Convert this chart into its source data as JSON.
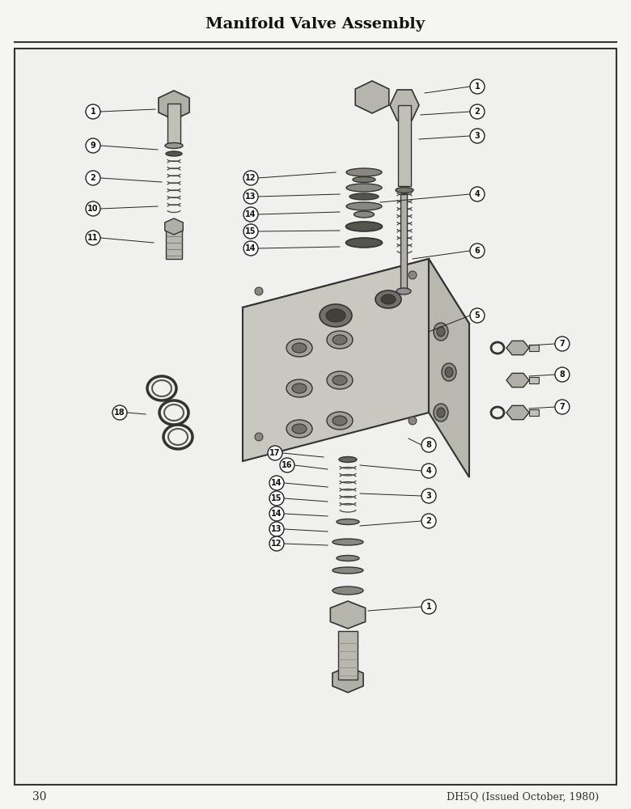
{
  "title": "Manifold Valve Assembly",
  "page_number": "30",
  "footer_text": "DH5Q (Issued October, 1980)",
  "bg_color": "#f0f0ee",
  "border_color": "#333333",
  "title_fontsize": 14,
  "body_bg": "#e8e8e4"
}
